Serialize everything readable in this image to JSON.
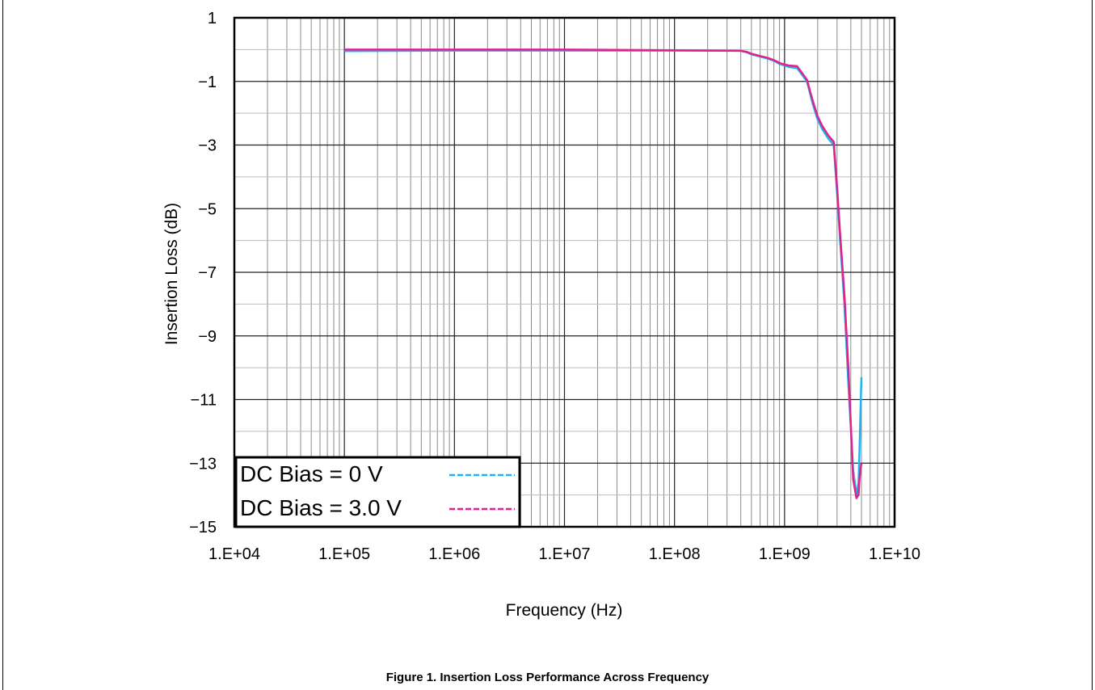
{
  "caption": "Figure 1. Insertion Loss Performance Across Frequency",
  "chart_data": {
    "type": "line",
    "xlabel": "Frequency (Hz)",
    "ylabel": "Insertion Loss (dB)",
    "x_scale": "log",
    "xlim": [
      10000,
      10000000000
    ],
    "ylim": [
      -15,
      1
    ],
    "grid": true,
    "x_ticks": [
      10000,
      100000,
      1000000,
      10000000,
      100000000,
      1000000000,
      10000000000
    ],
    "x_tick_labels": [
      "1.E+04",
      "1.E+05",
      "1.E+06",
      "1.E+07",
      "1.E+08",
      "1.E+09",
      "1.E+10"
    ],
    "y_ticks": [
      1,
      -1,
      -3,
      -5,
      -7,
      -9,
      -11,
      -13,
      -15
    ],
    "y_tick_labels": [
      "1",
      "−1",
      "−3",
      "−5",
      "−7",
      "−9",
      "−11",
      "−13",
      "−15"
    ],
    "legend_position": "bottom-left",
    "series": [
      {
        "name": "DC Bias = 0 V",
        "color": "#1EB4F0",
        "x": [
          100000,
          1000000,
          10000000,
          100000000,
          400000000,
          450000000,
          500000000,
          600000000,
          700000000,
          800000000,
          900000000,
          1000000000,
          1100000000,
          1300000000,
          1600000000,
          1800000000,
          2000000000,
          2200000000,
          2500000000,
          2800000000,
          3000000000,
          3200000000,
          3500000000,
          3800000000,
          4200000000,
          4500000000,
          4700000000,
          4800000000,
          4900000000,
          5000000000
        ],
        "y": [
          -0.05,
          -0.03,
          -0.03,
          -0.03,
          -0.04,
          -0.08,
          -0.15,
          -0.22,
          -0.28,
          -0.35,
          -0.45,
          -0.5,
          -0.55,
          -0.58,
          -1.0,
          -1.7,
          -2.2,
          -2.5,
          -2.8,
          -3.0,
          -4.5,
          -6.0,
          -8.0,
          -10.5,
          -13.2,
          -14.0,
          -13.6,
          -12.6,
          -11.4,
          -10.3
        ]
      },
      {
        "name": "DC Bias = 3.0 V",
        "color": "#E0228C",
        "x": [
          100000,
          1000000,
          10000000,
          100000000,
          400000000,
          450000000,
          500000000,
          600000000,
          700000000,
          800000000,
          900000000,
          1000000000,
          1100000000,
          1300000000,
          1600000000,
          1800000000,
          2000000000,
          2200000000,
          2500000000,
          2800000000,
          3000000000,
          3200000000,
          3500000000,
          3800000000,
          4200000000,
          4500000000,
          4700000000,
          4800000000,
          4900000000,
          5000000000
        ],
        "y": [
          0.0,
          0.0,
          0.0,
          -0.02,
          -0.04,
          -0.07,
          -0.13,
          -0.2,
          -0.26,
          -0.33,
          -0.42,
          -0.47,
          -0.5,
          -0.52,
          -0.95,
          -1.6,
          -2.1,
          -2.4,
          -2.7,
          -2.9,
          -4.3,
          -5.8,
          -7.7,
          -10.0,
          -13.5,
          -14.1,
          -14.0,
          -13.5,
          -13.2,
          -13.0
        ]
      }
    ]
  }
}
